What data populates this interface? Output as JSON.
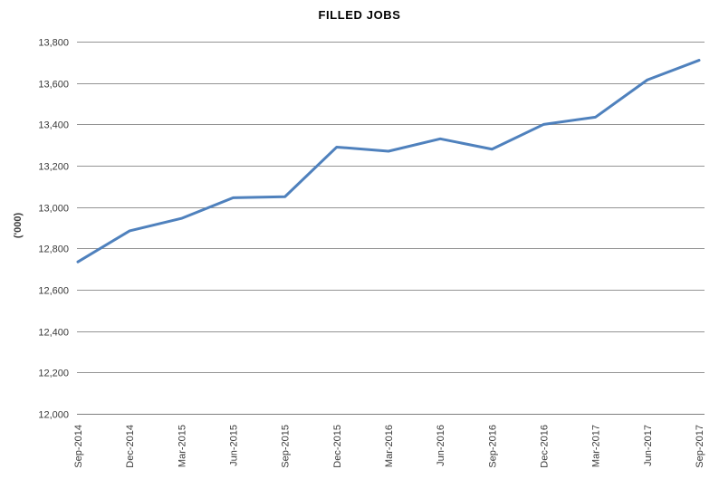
{
  "title": "FILLED JOBS",
  "y_axis_title": "('000)",
  "colors": {
    "line": "#4F81BD",
    "gridline": "#949494",
    "axis": "#7F7F7F",
    "tick_text": "#3a3a3a",
    "title_text": "#000000",
    "background": "#FFFFFF"
  },
  "chart_data": {
    "type": "line",
    "title": "FILLED JOBS",
    "xlabel": "",
    "ylabel": "('000)",
    "categories": [
      "Sep-2014",
      "Dec-2014",
      "Mar-2015",
      "Jun-2015",
      "Sep-2015",
      "Dec-2015",
      "Mar-2016",
      "Jun-2016",
      "Sep-2016",
      "Dec-2016",
      "Mar-2017",
      "Jun-2017",
      "Sep-2017"
    ],
    "values": [
      12735,
      12885,
      12945,
      13045,
      13050,
      13290,
      13270,
      13330,
      13280,
      13400,
      13435,
      13615,
      13710
    ],
    "ylim": [
      12000,
      13800
    ],
    "ytick_step": 200,
    "ytick_labels": [
      "12,000",
      "12,200",
      "12,400",
      "12,600",
      "12,800",
      "13,000",
      "13,200",
      "13,400",
      "13,600",
      "13,800"
    ],
    "grid": true,
    "legend": "none",
    "series_name": "Filled jobs"
  }
}
